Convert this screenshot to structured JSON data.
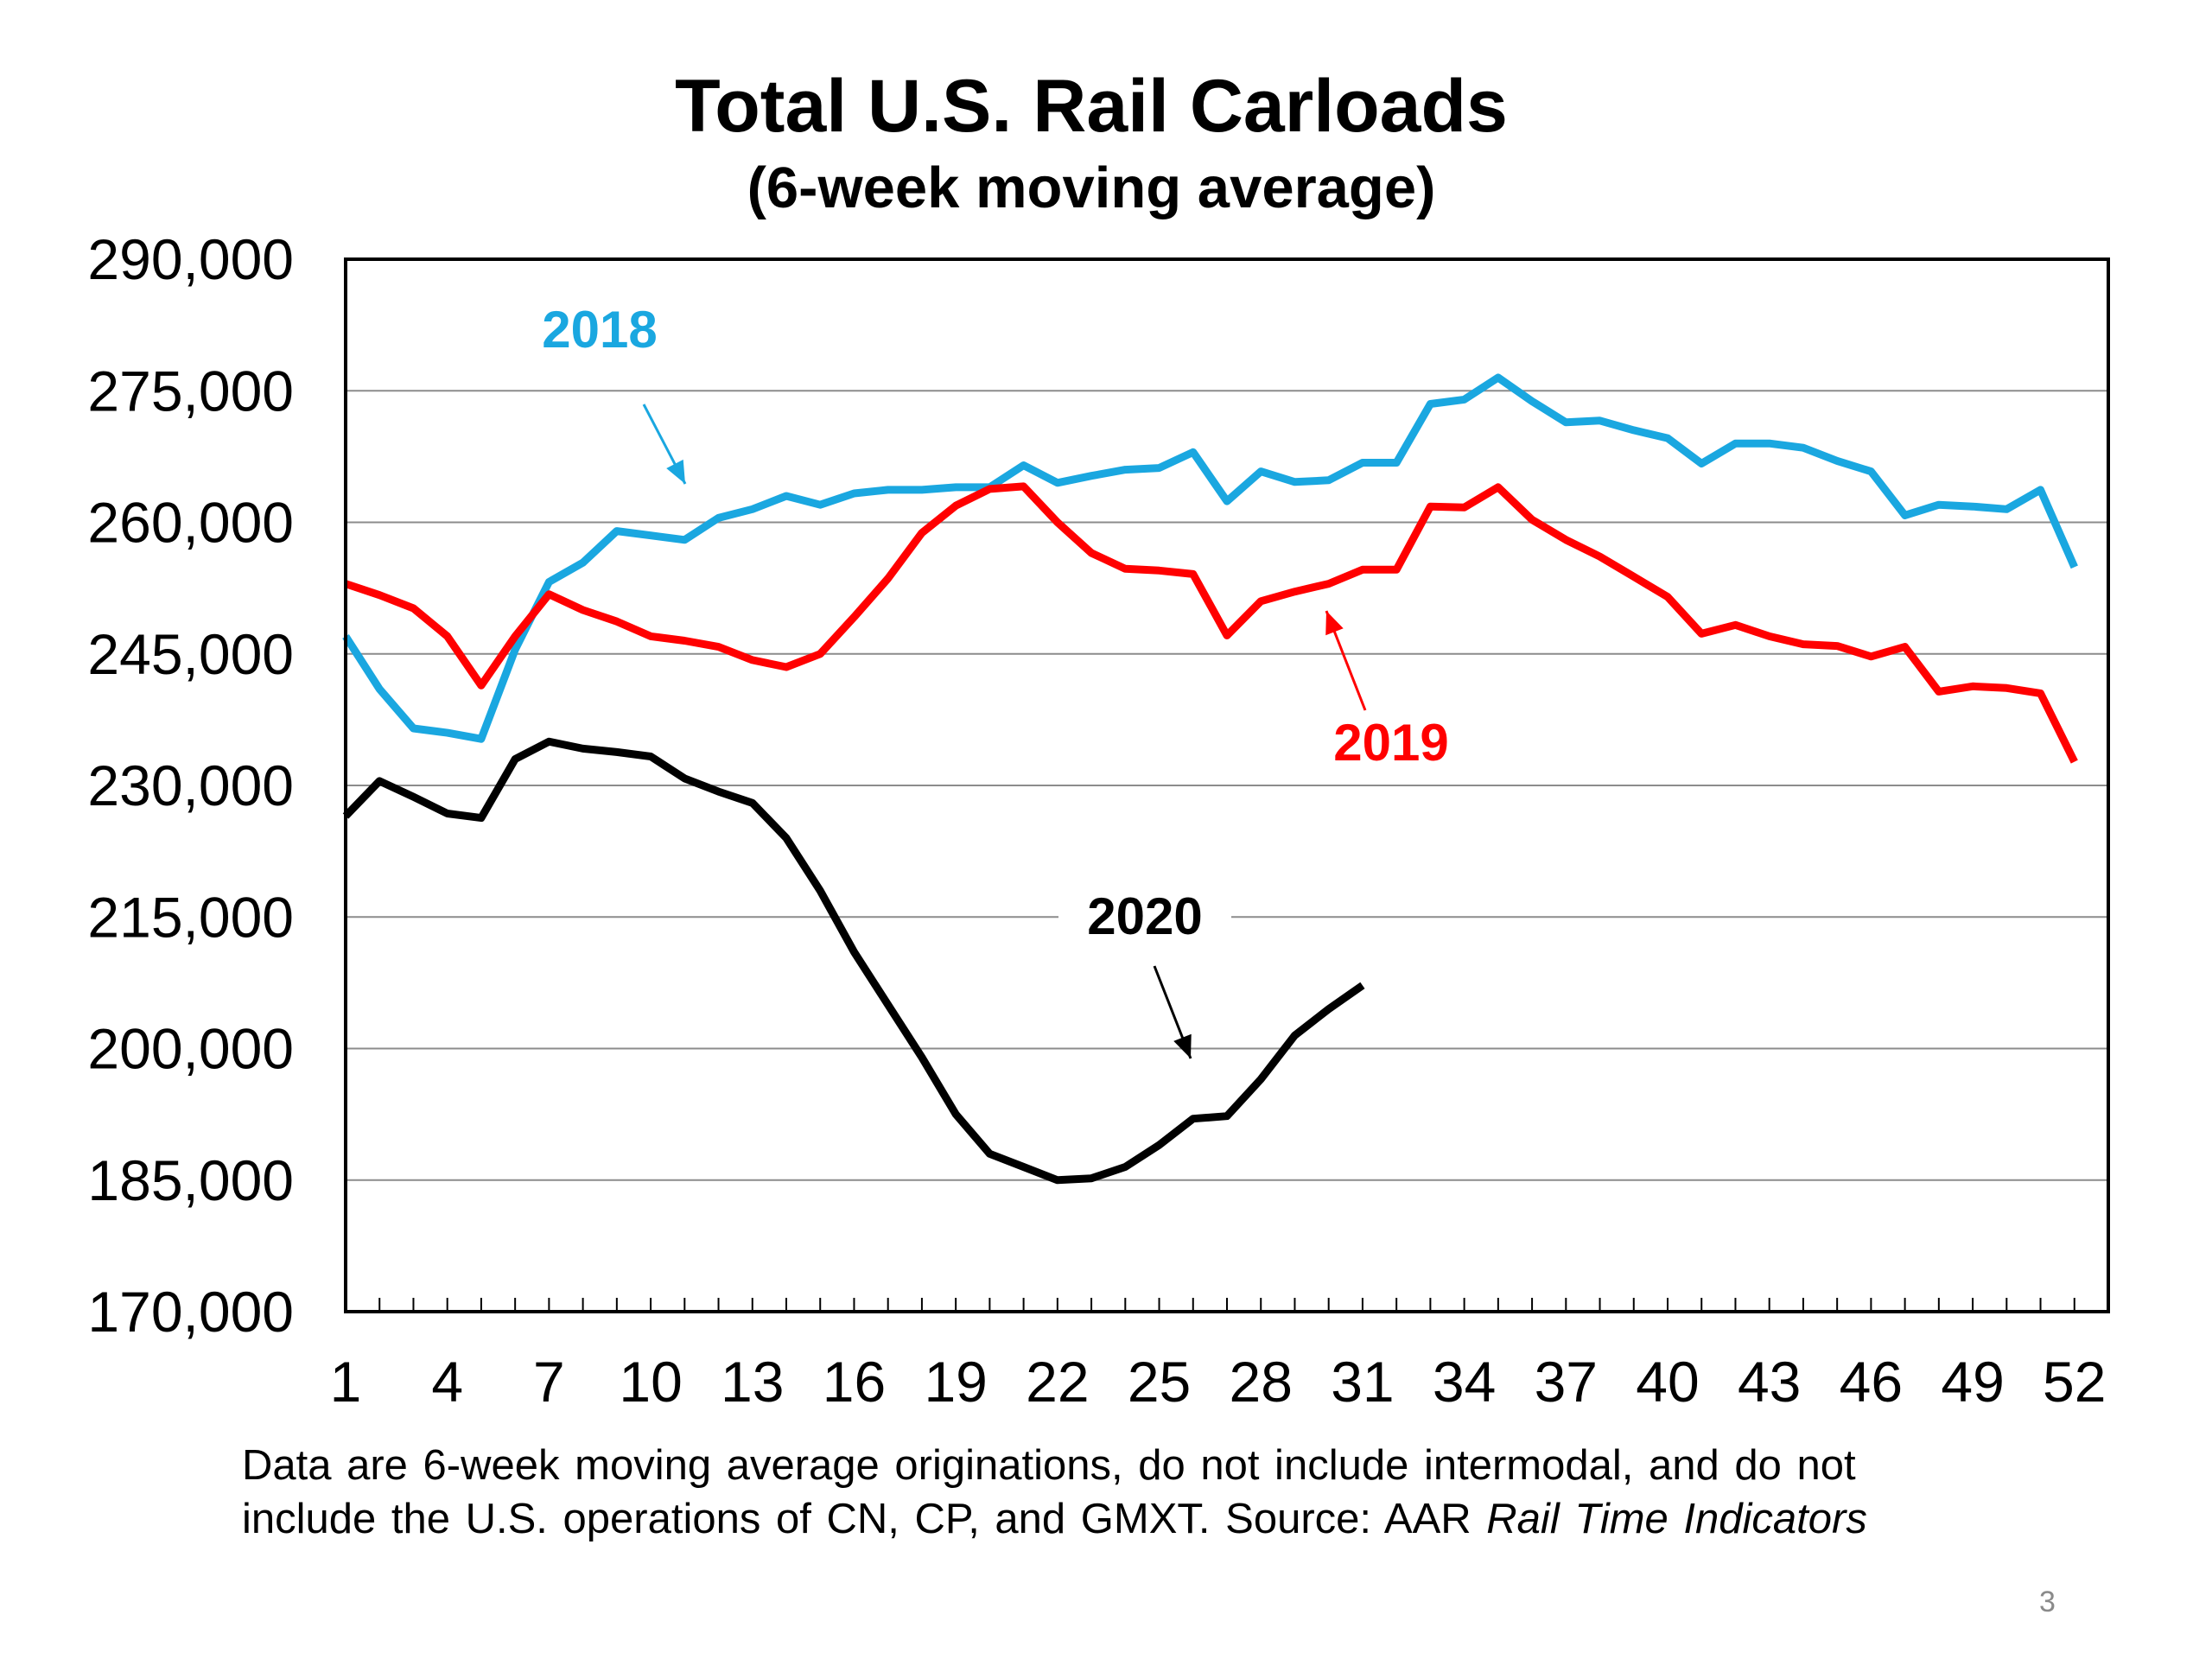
{
  "chart_data": {
    "type": "line",
    "title": "Total U.S. Rail Carloads",
    "subtitle": "(6-week moving average)",
    "xlabel": "",
    "ylabel": "",
    "xlim": [
      1,
      53
    ],
    "ylim": [
      170000,
      290000
    ],
    "yticks": [
      170000,
      185000,
      200000,
      215000,
      230000,
      245000,
      260000,
      275000,
      290000
    ],
    "ytick_labels": [
      "170,000",
      "185,000",
      "200,000",
      "215,000",
      "230,000",
      "245,000",
      "260,000",
      "275,000",
      "290,000"
    ],
    "xticks": [
      1,
      4,
      7,
      10,
      13,
      16,
      19,
      22,
      25,
      28,
      31,
      34,
      37,
      40,
      43,
      46,
      49,
      52
    ],
    "xtick_labels": [
      "1",
      "4",
      "7",
      "10",
      "13",
      "16",
      "19",
      "22",
      "25",
      "28",
      "31",
      "34",
      "37",
      "40",
      "43",
      "46",
      "49",
      "52"
    ],
    "grid": true,
    "series": [
      {
        "name": "2018",
        "color": "#1aa7e0",
        "x": [
          1,
          2,
          3,
          4,
          5,
          6,
          7,
          8,
          9,
          10,
          11,
          12,
          13,
          14,
          15,
          16,
          17,
          18,
          19,
          20,
          21,
          22,
          23,
          24,
          25,
          26,
          27,
          28,
          29,
          30,
          31,
          32,
          33,
          34,
          35,
          36,
          37,
          38,
          39,
          40,
          41,
          42,
          43,
          44,
          45,
          46,
          47,
          48,
          49,
          50,
          51,
          52
        ],
        "values": [
          247000,
          241000,
          236500,
          236000,
          235300,
          245500,
          253200,
          255400,
          259000,
          258500,
          258000,
          260500,
          261500,
          263000,
          262000,
          263300,
          263700,
          263700,
          264000,
          264000,
          266500,
          264500,
          265300,
          266000,
          266200,
          268000,
          262400,
          265800,
          264600,
          264800,
          266800,
          266800,
          273500,
          274000,
          276500,
          273800,
          271400,
          271600,
          270500,
          269600,
          266700,
          269000,
          269000,
          268500,
          267000,
          265800,
          260800,
          262000,
          261800,
          261500,
          263700,
          254900
        ]
      },
      {
        "name": "2019",
        "color": "#ff0000",
        "x": [
          1,
          2,
          3,
          4,
          5,
          6,
          7,
          8,
          9,
          10,
          11,
          12,
          13,
          14,
          15,
          16,
          17,
          18,
          19,
          20,
          21,
          22,
          23,
          24,
          25,
          26,
          27,
          28,
          29,
          30,
          31,
          32,
          33,
          34,
          35,
          36,
          37,
          38,
          39,
          40,
          41,
          42,
          43,
          44,
          45,
          46,
          47,
          48,
          49,
          50,
          51,
          52
        ],
        "values": [
          253000,
          251700,
          250200,
          247000,
          241400,
          247000,
          251800,
          250000,
          248700,
          247000,
          246500,
          245800,
          244300,
          243500,
          245000,
          249200,
          253600,
          258800,
          261900,
          263800,
          264100,
          260000,
          256500,
          254700,
          254500,
          254100,
          247100,
          251000,
          252100,
          253000,
          254600,
          254600,
          261800,
          261700,
          264000,
          260300,
          258000,
          256100,
          253800,
          251500,
          247300,
          248300,
          247000,
          246100,
          245900,
          244700,
          245800,
          240700,
          241300,
          241100,
          240500,
          232700
        ]
      },
      {
        "name": "2020",
        "color": "#000000",
        "x": [
          1,
          2,
          3,
          4,
          5,
          6,
          7,
          8,
          9,
          10,
          11,
          12,
          13,
          14,
          15,
          16,
          17,
          18,
          19,
          20,
          21,
          22,
          23,
          24,
          25,
          26,
          27,
          28,
          29,
          30,
          31
        ],
        "values": [
          226500,
          230500,
          228700,
          226800,
          226300,
          233000,
          235000,
          234200,
          233800,
          233300,
          230800,
          229300,
          228000,
          224000,
          218000,
          211000,
          205000,
          199000,
          192500,
          188000,
          186500,
          185000,
          185200,
          186500,
          189000,
          192000,
          192300,
          196500,
          201500,
          204500,
          207200
        ]
      }
    ],
    "annotations": [
      {
        "text": "2018",
        "color": "#1aa7e0"
      },
      {
        "text": "2019",
        "color": "#ff0000"
      },
      {
        "text": "2020",
        "color": "#000000"
      }
    ]
  },
  "footnote": {
    "line1": "Data are 6-week moving average originations, do not include intermodal, and do not",
    "line2_plain": "include the U.S. operations of CN, CP, and GMXT.   Source: AAR ",
    "line2_italic": "Rail Time Indicators"
  },
  "page_number": "3"
}
